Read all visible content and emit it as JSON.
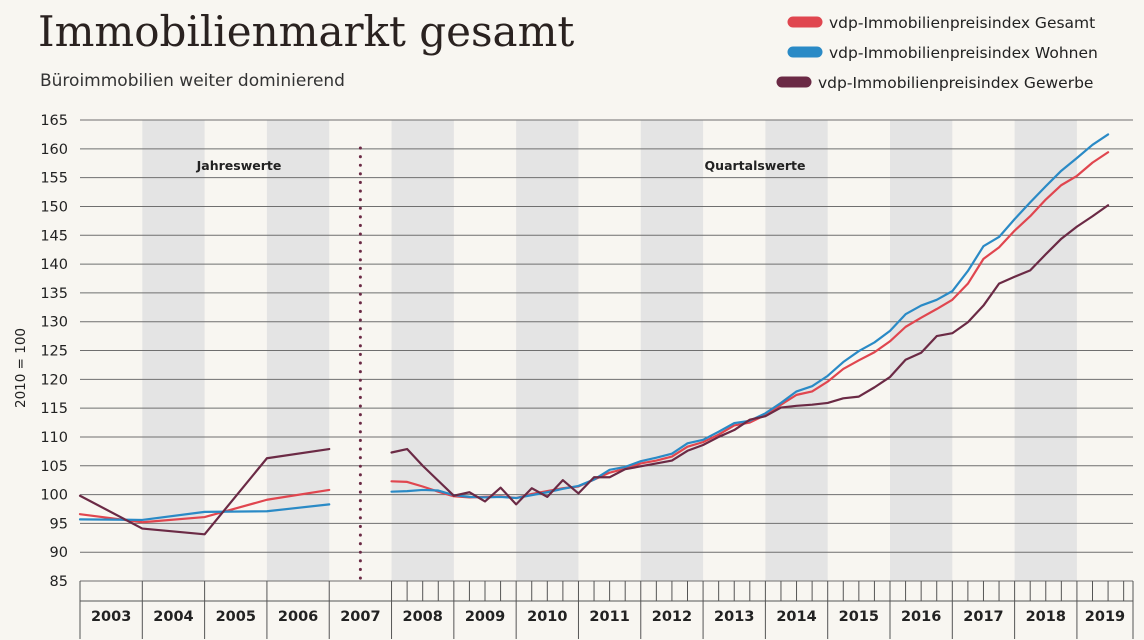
{
  "chart_data": {
    "type": "line",
    "title": "Immobilienmarkt gesamt",
    "subtitle": "Büroimmobilien weiter dominierend",
    "ylabel": "2010 = 100",
    "ylim": [
      85,
      165
    ],
    "yticks": [
      85,
      90,
      95,
      100,
      105,
      110,
      115,
      120,
      125,
      130,
      135,
      140,
      145,
      150,
      155,
      160,
      165
    ],
    "xlim": [
      2003,
      2019.9
    ],
    "year_labels": [
      "2003",
      "2004",
      "2005",
      "2006",
      "2007",
      "2008",
      "2009",
      "2010",
      "2011",
      "2012",
      "2013",
      "2014",
      "2015",
      "2016",
      "2017",
      "2018",
      "2019"
    ],
    "shaded_years": [
      "2004",
      "2006",
      "2008",
      "2010",
      "2012",
      "2014",
      "2016",
      "2018"
    ],
    "grid": true,
    "legend_position": "top-right",
    "annotations": [
      "Jahreswerte",
      "Quartalswerte"
    ],
    "divider": {
      "x": 2007.5,
      "style": "dotted",
      "color": "#6b2a45"
    },
    "series": [
      {
        "name": "vdp-Immobilienpreisindex Gesamt",
        "color": "#e0464f",
        "annual": {
          "x": [
            2003,
            2004,
            2005,
            2006,
            2007
          ],
          "y": [
            96.6,
            95.2,
            96.1,
            99.1,
            100.8
          ]
        },
        "quarterly": {
          "start": 2008,
          "values": [
            102.3,
            102.2,
            101.4,
            100.5,
            99.7,
            99.5,
            99.6,
            99.7,
            99.4,
            100.1,
            100.6,
            101.1,
            101.4,
            102.6,
            103.8,
            104.5,
            105.4,
            105.9,
            106.6,
            108.3,
            109.1,
            110.4,
            112.0,
            112.5,
            113.8,
            115.6,
            117.3,
            117.9,
            119.6,
            121.8,
            123.3,
            124.7,
            126.6,
            129.1,
            130.7,
            132.2,
            133.8,
            136.6,
            140.9,
            142.9,
            145.8,
            148.3,
            151.2,
            153.7,
            155.3,
            157.6,
            159.4
          ]
        }
      },
      {
        "name": "vdp-Immobilienpreisindex Wohnen",
        "color": "#2a8ac6",
        "annual": {
          "x": [
            2003,
            2004,
            2005,
            2006,
            2007
          ],
          "y": [
            95.7,
            95.6,
            97.0,
            97.1,
            98.3
          ]
        },
        "quarterly": {
          "start": 2008,
          "values": [
            100.5,
            100.6,
            100.8,
            100.7,
            99.9,
            99.6,
            99.5,
            99.6,
            99.4,
            99.9,
            100.4,
            101.0,
            101.5,
            102.6,
            104.3,
            104.8,
            105.8,
            106.4,
            107.1,
            108.9,
            109.5,
            110.9,
            112.4,
            112.8,
            114.1,
            115.9,
            117.9,
            118.8,
            120.6,
            123.0,
            124.9,
            126.4,
            128.4,
            131.3,
            132.8,
            133.8,
            135.3,
            138.8,
            143.1,
            144.7,
            147.8,
            150.7,
            153.5,
            156.2,
            158.4,
            160.7,
            162.5
          ]
        }
      },
      {
        "name": "vdp-Immobilienpreisindex Gewerbe",
        "color": "#6b2a45",
        "annual": {
          "x": [
            2003,
            2004,
            2005,
            2006,
            2007
          ],
          "y": [
            99.8,
            94.1,
            93.1,
            106.3,
            107.9
          ]
        },
        "quarterly": {
          "start": 2008,
          "values": [
            107.3,
            107.9,
            105.0,
            102.4,
            99.8,
            100.4,
            98.8,
            101.2,
            98.3,
            101.1,
            99.6,
            102.5,
            100.2,
            103.0,
            103.0,
            104.4,
            104.9,
            105.4,
            105.9,
            107.6,
            108.6,
            110.0,
            111.2,
            113.0,
            113.6,
            115.1,
            115.4,
            115.6,
            115.9,
            116.7,
            117.0,
            118.6,
            120.4,
            123.4,
            124.6,
            127.5,
            128.0,
            129.9,
            132.8,
            136.6,
            137.8,
            138.9,
            141.7,
            144.4,
            146.5,
            148.3,
            150.2
          ]
        }
      }
    ]
  }
}
